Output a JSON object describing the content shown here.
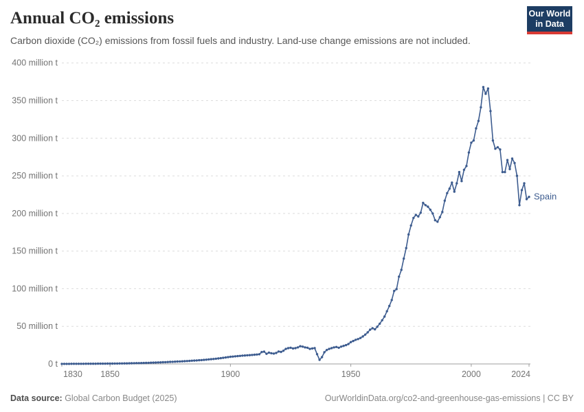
{
  "header": {
    "title": "Annual CO₂ emissions",
    "subtitle": "Carbon dioxide (CO₂) emissions from fossil fuels and industry. Land-use change emissions are not included.",
    "logo": {
      "line1": "Our World",
      "line2": "in Data",
      "bg_color": "#1d3d63",
      "accent_color": "#d93a34"
    }
  },
  "footer": {
    "source_label": "Data source:",
    "source_value": " Global Carbon Budget (2025)",
    "link_text": "OurWorldinData.org/co2-and-greenhouse-gas-emissions | CC BY"
  },
  "chart_data": {
    "type": "line",
    "title": "Annual CO₂ emissions",
    "subtitle": "Carbon dioxide (CO₂) emissions from fossil fuels and industry. Land-use change emissions are not included.",
    "unit": "million t",
    "grid": true,
    "xlim": [
      1830,
      2024
    ],
    "ylim": [
      0,
      400
    ],
    "grid_color": "#dcdcdc",
    "axis_color": "#9c9c9c",
    "x_ticks": [
      {
        "year": 1830,
        "label": "1830"
      },
      {
        "year": 1850,
        "label": "1850"
      },
      {
        "year": 1900,
        "label": "1900"
      },
      {
        "year": 1950,
        "label": "1950"
      },
      {
        "year": 2000,
        "label": "2000"
      },
      {
        "year": 2024,
        "label": "2024"
      }
    ],
    "y_ticks": [
      {
        "value": 0,
        "label": "0 t"
      },
      {
        "value": 50,
        "label": "50 million t"
      },
      {
        "value": 100,
        "label": "100 million t"
      },
      {
        "value": 150,
        "label": "150 million t"
      },
      {
        "value": 200,
        "label": "200 million t"
      },
      {
        "value": 250,
        "label": "250 million t"
      },
      {
        "value": 300,
        "label": "300 million t"
      },
      {
        "value": 350,
        "label": "350 million t"
      },
      {
        "value": 400,
        "label": "400 million t"
      }
    ],
    "series": [
      {
        "name": "Spain",
        "color": "#3d5c8f",
        "years": [
          1830,
          1831,
          1832,
          1833,
          1834,
          1835,
          1836,
          1837,
          1838,
          1839,
          1840,
          1841,
          1842,
          1843,
          1844,
          1845,
          1846,
          1847,
          1848,
          1849,
          1850,
          1851,
          1852,
          1853,
          1854,
          1855,
          1856,
          1857,
          1858,
          1859,
          1860,
          1861,
          1862,
          1863,
          1864,
          1865,
          1866,
          1867,
          1868,
          1869,
          1870,
          1871,
          1872,
          1873,
          1874,
          1875,
          1876,
          1877,
          1878,
          1879,
          1880,
          1881,
          1882,
          1883,
          1884,
          1885,
          1886,
          1887,
          1888,
          1889,
          1890,
          1891,
          1892,
          1893,
          1894,
          1895,
          1896,
          1897,
          1898,
          1899,
          1900,
          1901,
          1902,
          1903,
          1904,
          1905,
          1906,
          1907,
          1908,
          1909,
          1910,
          1911,
          1912,
          1913,
          1914,
          1915,
          1916,
          1917,
          1918,
          1919,
          1920,
          1921,
          1922,
          1923,
          1924,
          1925,
          1926,
          1927,
          1928,
          1929,
          1930,
          1931,
          1932,
          1933,
          1934,
          1935,
          1936,
          1937,
          1938,
          1939,
          1940,
          1941,
          1942,
          1943,
          1944,
          1945,
          1946,
          1947,
          1948,
          1949,
          1950,
          1951,
          1952,
          1953,
          1954,
          1955,
          1956,
          1957,
          1958,
          1959,
          1960,
          1961,
          1962,
          1963,
          1964,
          1965,
          1966,
          1967,
          1968,
          1969,
          1970,
          1971,
          1972,
          1973,
          1974,
          1975,
          1976,
          1977,
          1978,
          1979,
          1980,
          1981,
          1982,
          1983,
          1984,
          1985,
          1986,
          1987,
          1988,
          1989,
          1990,
          1991,
          1992,
          1993,
          1994,
          1995,
          1996,
          1997,
          1998,
          1999,
          2000,
          2001,
          2002,
          2003,
          2004,
          2005,
          2006,
          2007,
          2008,
          2009,
          2010,
          2011,
          2012,
          2013,
          2014,
          2015,
          2016,
          2017,
          2018,
          2019,
          2020,
          2021,
          2022,
          2023,
          2024
        ],
        "values": [
          0.1,
          0.11,
          0.12,
          0.13,
          0.14,
          0.15,
          0.16,
          0.18,
          0.19,
          0.21,
          0.23,
          0.25,
          0.27,
          0.29,
          0.31,
          0.33,
          0.35,
          0.37,
          0.39,
          0.42,
          0.45,
          0.49,
          0.53,
          0.57,
          0.61,
          0.66,
          0.71,
          0.77,
          0.83,
          0.9,
          0.97,
          1.05,
          1.13,
          1.22,
          1.31,
          1.41,
          1.5,
          1.6,
          1.72,
          1.85,
          2.0,
          2.1,
          2.25,
          2.4,
          2.55,
          2.7,
          2.85,
          3.0,
          3.15,
          3.3,
          3.5,
          3.65,
          3.85,
          4.05,
          4.25,
          4.45,
          4.65,
          4.9,
          5.15,
          5.4,
          5.7,
          6.0,
          6.3,
          6.6,
          6.95,
          7.3,
          7.7,
          8.1,
          8.55,
          9.0,
          9.5,
          9.8,
          10.1,
          10.4,
          10.7,
          11.0,
          11.2,
          11.5,
          11.7,
          12.0,
          12.2,
          12.5,
          12.9,
          15.8,
          16.3,
          13.5,
          15.0,
          14.2,
          13.8,
          14.6,
          16.5,
          16.0,
          17.5,
          20.0,
          21.0,
          21.5,
          20.5,
          21.0,
          22.0,
          23.5,
          23.0,
          22.0,
          21.5,
          20.0,
          20.5,
          21.0,
          13.0,
          5.5,
          9.0,
          15.5,
          18.5,
          20.0,
          21.0,
          22.0,
          22.5,
          21.5,
          23.0,
          24.0,
          25.0,
          26.5,
          29.0,
          30.5,
          32.0,
          33.0,
          34.5,
          36.5,
          39.0,
          42.0,
          45.5,
          47.5,
          46.0,
          49.5,
          53.5,
          58.0,
          63.0,
          70.0,
          77.0,
          85.0,
          97.0,
          99.5,
          116,
          125,
          140,
          154,
          172,
          184,
          194,
          198,
          196,
          201,
          214,
          211,
          209,
          205,
          200,
          191,
          189,
          195,
          202,
          217,
          227,
          233,
          241,
          229,
          240,
          255,
          243,
          258,
          263,
          281,
          294,
          297,
          313,
          323,
          341,
          368,
          359,
          366,
          336,
          297,
          286,
          288,
          285,
          255,
          255,
          271,
          259,
          273,
          267,
          250,
          211,
          231,
          240,
          219,
          222
        ]
      }
    ],
    "legend_position": "end-of-line-label"
  }
}
